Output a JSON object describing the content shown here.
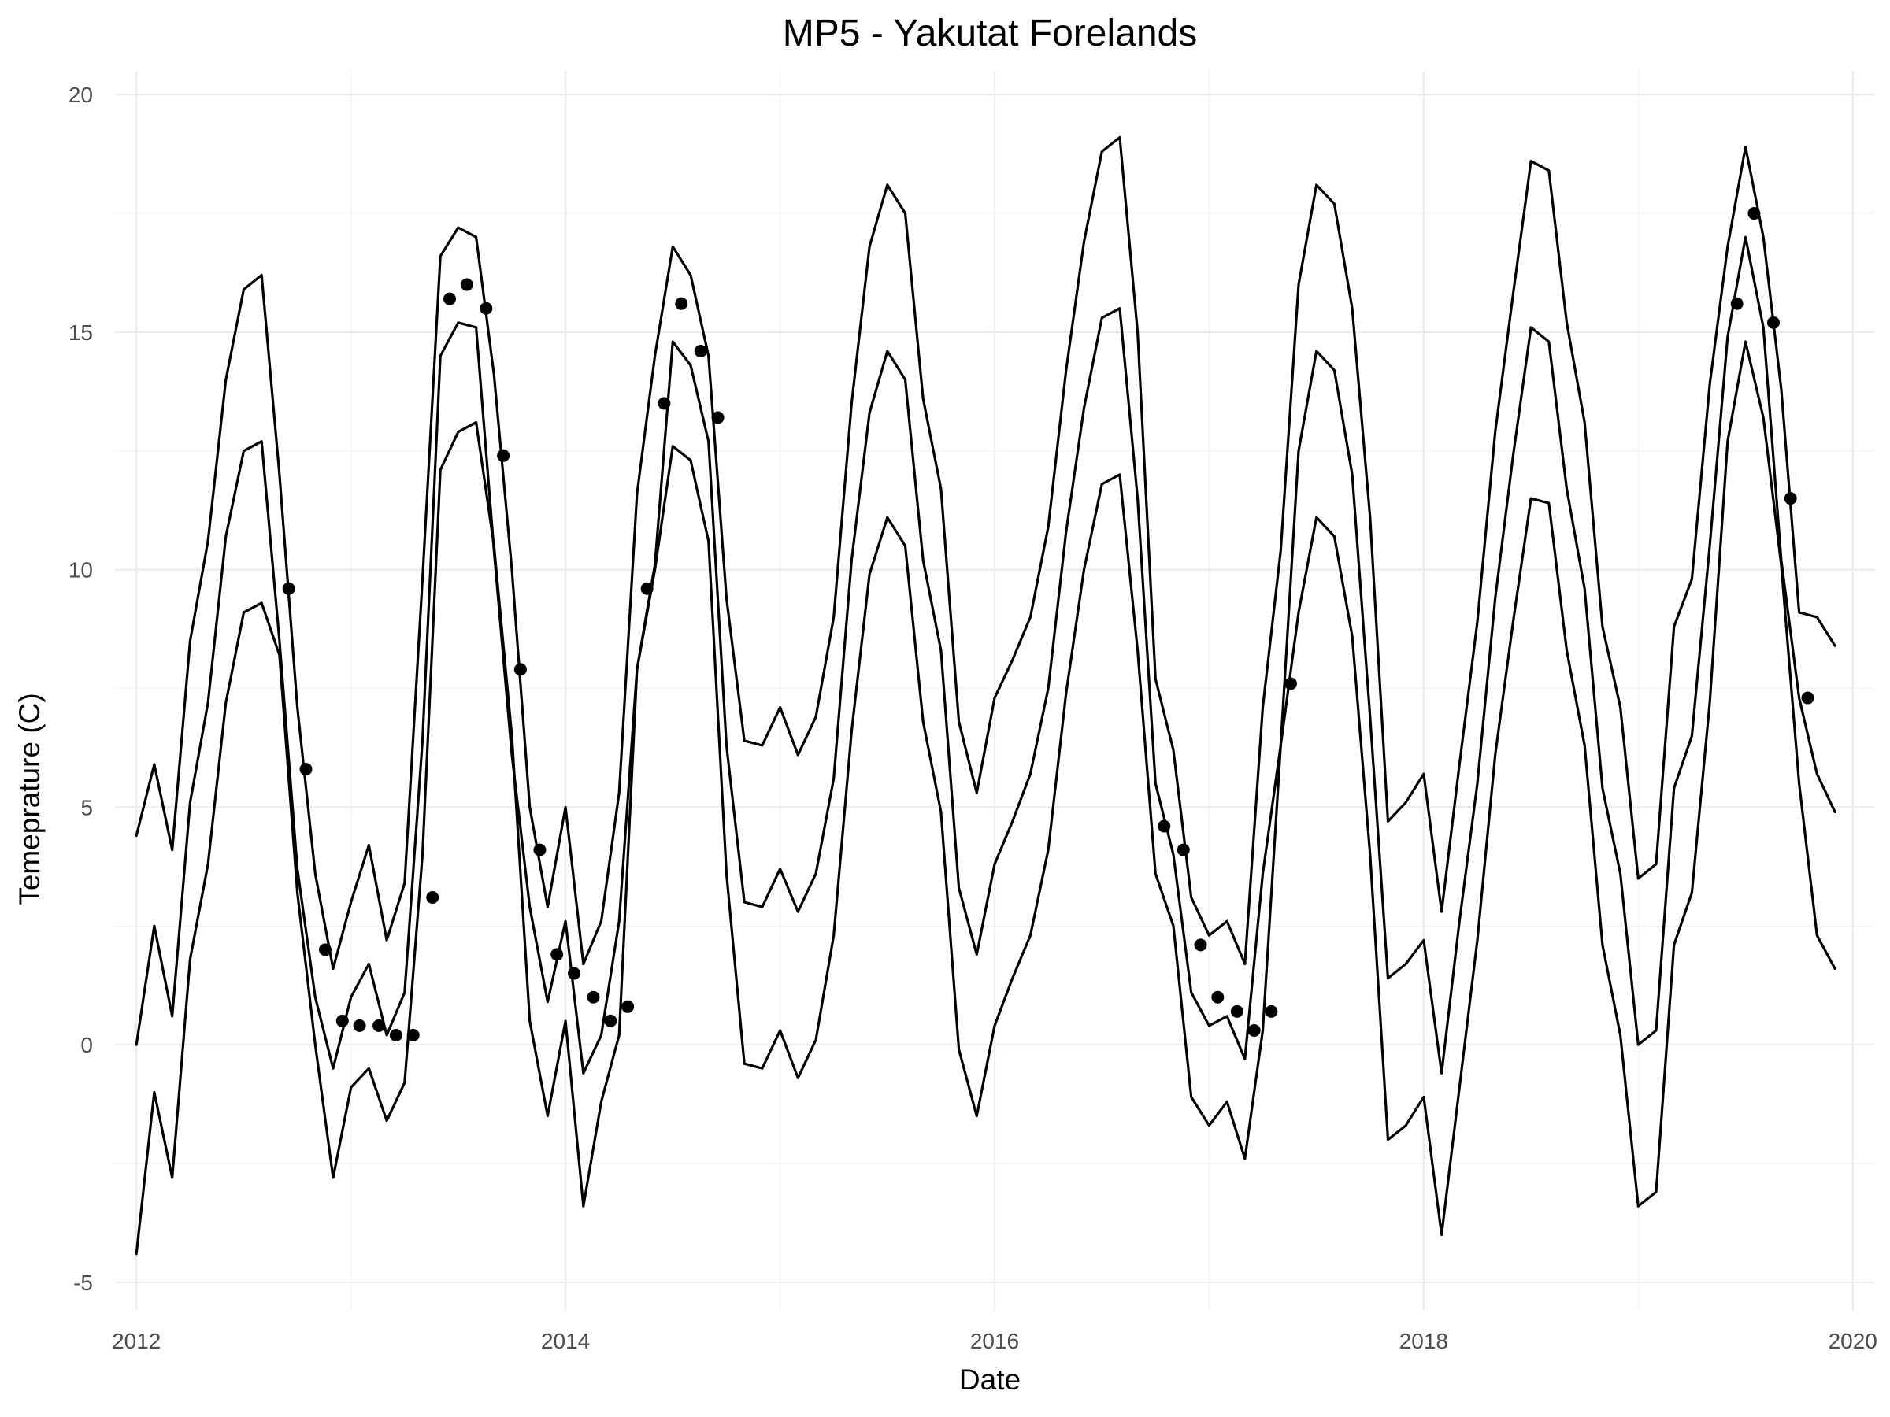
{
  "chart_data": {
    "type": "line",
    "title": "MP5 - Yakutat Forelands",
    "xlabel": "Date",
    "ylabel": "Temeprature (C)",
    "x_unit": "decimal year",
    "xlim": [
      2011.9,
      2020.1
    ],
    "ylim": [
      -5.6,
      20.5
    ],
    "xticks": [
      2012,
      2014,
      2016,
      2018,
      2020
    ],
    "xtick_labels": [
      "2012",
      "2014",
      "2016",
      "2018",
      "2020"
    ],
    "yticks": [
      -5,
      0,
      5,
      10,
      15,
      20
    ],
    "ytick_labels": [
      "-5",
      "0",
      "5",
      "10",
      "15",
      "20"
    ],
    "grid": true,
    "legend": "none",
    "x_months": "monthly from 2012-01 to 2019-12",
    "series": [
      {
        "values": [
          4.4,
          5.9,
          4.1,
          8.5,
          10.6,
          14.0,
          15.9,
          16.2,
          12.0,
          7.1,
          3.6,
          1.6,
          3.0,
          4.2,
          2.2,
          3.4,
          9.8,
          16.6,
          17.2,
          17.0,
          14.1,
          10.0,
          5.0,
          2.9,
          5.0,
          1.7,
          2.6,
          5.3,
          11.6,
          14.5,
          16.8,
          16.2,
          14.5,
          9.4,
          6.4,
          6.3,
          7.1,
          6.1,
          6.9,
          9.0,
          13.5,
          16.8,
          18.1,
          17.5,
          13.6,
          11.7,
          6.8,
          5.3,
          7.3,
          8.1,
          9.0,
          10.9,
          14.2,
          16.9,
          18.8,
          19.1,
          15.0,
          7.7,
          6.2,
          3.1,
          2.3,
          2.6,
          1.7,
          7.1,
          10.4,
          16.0,
          18.1,
          17.7,
          15.5,
          11.1,
          4.7,
          5.1,
          5.7,
          2.8,
          5.9,
          8.9,
          12.9,
          15.8,
          18.6,
          18.4,
          15.2,
          13.1,
          8.8,
          7.1,
          3.5,
          3.8,
          8.8,
          9.8,
          13.9,
          16.8,
          18.9,
          17.0,
          13.8,
          9.1,
          9.0,
          8.4
        ]
      },
      {
        "values": [
          0.0,
          2.5,
          0.6,
          5.1,
          7.2,
          10.7,
          12.5,
          12.7,
          8.5,
          3.7,
          1.0,
          -0.5,
          1.0,
          1.7,
          0.2,
          1.1,
          6.4,
          14.5,
          15.2,
          15.1,
          10.4,
          6.1,
          2.9,
          0.9,
          2.6,
          -0.6,
          0.2,
          2.6,
          7.9,
          10.1,
          14.8,
          14.3,
          12.7,
          6.3,
          3.0,
          2.9,
          3.7,
          2.8,
          3.6,
          5.6,
          10.2,
          13.3,
          14.6,
          14.0,
          10.2,
          8.3,
          3.3,
          1.9,
          3.8,
          4.7,
          5.7,
          7.5,
          10.8,
          13.4,
          15.3,
          15.5,
          11.5,
          5.5,
          4.0,
          1.1,
          0.4,
          0.6,
          -0.3,
          3.6,
          6.3,
          12.5,
          14.6,
          14.2,
          12.0,
          6.9,
          1.4,
          1.7,
          2.2,
          -0.6,
          2.6,
          5.5,
          9.4,
          12.4,
          15.1,
          14.8,
          11.7,
          9.6,
          5.4,
          3.6,
          0.0,
          0.3,
          5.4,
          6.5,
          10.5,
          14.9,
          17.0,
          15.1,
          10.2,
          7.3,
          5.7,
          4.9
        ]
      },
      {
        "values": [
          -4.4,
          -1.0,
          -2.8,
          1.8,
          3.8,
          7.2,
          9.1,
          9.3,
          8.2,
          3.2,
          0.0,
          -2.8,
          -0.9,
          -0.5,
          -1.6,
          -0.8,
          4.0,
          12.1,
          12.9,
          13.1,
          10.5,
          6.5,
          0.5,
          -1.5,
          0.5,
          -3.4,
          -1.2,
          0.2,
          7.9,
          10.0,
          12.6,
          12.3,
          10.6,
          3.6,
          -0.4,
          -0.5,
          0.3,
          -0.7,
          0.1,
          2.3,
          6.6,
          9.9,
          11.1,
          10.5,
          6.8,
          4.9,
          -0.1,
          -1.5,
          0.4,
          1.4,
          2.3,
          4.1,
          7.4,
          10.0,
          11.8,
          12.0,
          8.3,
          3.6,
          2.5,
          -1.1,
          -1.7,
          -1.2,
          -2.4,
          0.3,
          6.3,
          9.1,
          11.1,
          10.7,
          8.6,
          4.0,
          -2.0,
          -1.7,
          -1.1,
          -4.0,
          -0.9,
          2.2,
          6.1,
          8.9,
          11.5,
          11.4,
          8.3,
          6.3,
          2.1,
          0.2,
          -3.4,
          -3.1,
          2.1,
          3.2,
          7.2,
          12.7,
          14.8,
          13.2,
          10.1,
          5.5,
          2.3,
          1.6
        ]
      }
    ],
    "points": {
      "x": [
        2012.71,
        2012.79,
        2012.88,
        2012.96,
        2013.04,
        2013.13,
        2013.21,
        2013.29,
        2013.38,
        2013.46,
        2013.54,
        2013.63,
        2013.71,
        2013.79,
        2013.88,
        2013.96,
        2014.04,
        2014.13,
        2014.21,
        2014.29,
        2014.38,
        2014.46,
        2014.54,
        2014.63,
        2014.71,
        2016.79,
        2016.88,
        2016.96,
        2017.04,
        2017.13,
        2017.21,
        2017.29,
        2017.38,
        2019.46,
        2019.54,
        2019.63,
        2019.71,
        2019.79
      ],
      "y": [
        9.6,
        5.8,
        2.0,
        0.5,
        0.4,
        0.4,
        0.2,
        0.2,
        3.1,
        15.7,
        16.0,
        15.5,
        12.4,
        7.9,
        4.1,
        1.9,
        1.5,
        1.0,
        0.5,
        0.8,
        9.6,
        13.5,
        15.6,
        14.6,
        13.2,
        4.6,
        4.1,
        2.1,
        1.0,
        0.7,
        0.3,
        0.7,
        7.6,
        15.6,
        17.5,
        15.2,
        11.5,
        7.3
      ]
    }
  }
}
